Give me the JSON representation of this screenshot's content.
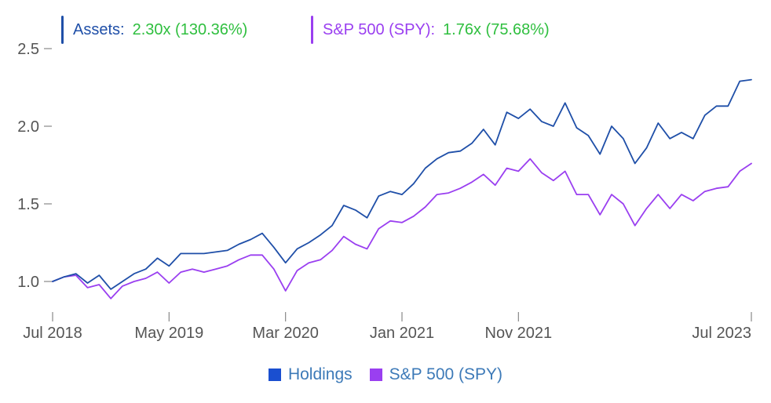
{
  "readout": {
    "assets": {
      "label": "Assets:",
      "value": "2.30x (130.36%)"
    },
    "spy": {
      "label": "S&P 500 (SPY):",
      "value": "1.76x (75.68%)"
    }
  },
  "legend": {
    "holdings": "Holdings",
    "spy": "S&P 500 (SPY)"
  },
  "colors": {
    "assets": "#1f4fa8",
    "spy": "#9a3ff0",
    "value_text": "#2fbf3f",
    "legend_text": "#3d7ab8",
    "holdings_swatch": "#1a4fd0",
    "spy_swatch": "#9a3ff0"
  },
  "chart_data": {
    "type": "line",
    "title": "",
    "xlabel": "",
    "ylabel": "",
    "ylim": [
      0.8,
      2.55
    ],
    "yticks": [
      1.0,
      1.5,
      2.0,
      2.5
    ],
    "ytick_labels": [
      "1.0",
      "1.5",
      "2.0",
      "2.5"
    ],
    "xtick_labels": [
      "Jul 2018",
      "May 2019",
      "Mar 2020",
      "Jan 2021",
      "Nov 2021",
      "Jul 2023"
    ],
    "xtick_index": [
      0,
      10,
      20,
      30,
      40,
      60
    ],
    "grid": false,
    "legend_position": "bottom",
    "x": [
      "2018-07",
      "2018-08",
      "2018-09",
      "2018-10",
      "2018-11",
      "2018-12",
      "2019-01",
      "2019-02",
      "2019-03",
      "2019-04",
      "2019-05",
      "2019-06",
      "2019-07",
      "2019-08",
      "2019-09",
      "2019-10",
      "2019-11",
      "2019-12",
      "2020-01",
      "2020-02",
      "2020-03",
      "2020-04",
      "2020-05",
      "2020-06",
      "2020-07",
      "2020-08",
      "2020-09",
      "2020-10",
      "2020-11",
      "2020-12",
      "2021-01",
      "2021-02",
      "2021-03",
      "2021-04",
      "2021-05",
      "2021-06",
      "2021-07",
      "2021-08",
      "2021-09",
      "2021-10",
      "2021-11",
      "2021-12",
      "2022-01",
      "2022-02",
      "2022-03",
      "2022-04",
      "2022-05",
      "2022-06",
      "2022-07",
      "2022-08",
      "2022-09",
      "2022-10",
      "2022-11",
      "2022-12",
      "2023-01",
      "2023-02",
      "2023-03",
      "2023-04",
      "2023-05",
      "2023-06",
      "2023-07"
    ],
    "series": [
      {
        "name": "Holdings",
        "color": "#1f4fa8",
        "values": [
          1.0,
          1.03,
          1.05,
          0.99,
          1.04,
          0.95,
          1.0,
          1.05,
          1.08,
          1.15,
          1.1,
          1.18,
          1.18,
          1.18,
          1.19,
          1.2,
          1.24,
          1.27,
          1.31,
          1.22,
          1.12,
          1.21,
          1.25,
          1.3,
          1.36,
          1.49,
          1.46,
          1.41,
          1.55,
          1.58,
          1.56,
          1.63,
          1.73,
          1.79,
          1.83,
          1.84,
          1.89,
          1.98,
          1.88,
          2.09,
          2.05,
          2.11,
          2.03,
          2.0,
          2.15,
          1.99,
          1.94,
          1.82,
          2.0,
          1.92,
          1.76,
          1.86,
          2.02,
          1.92,
          1.96,
          1.92,
          2.07,
          2.13,
          2.13,
          2.29,
          2.3
        ]
      },
      {
        "name": "S&P 500 (SPY)",
        "color": "#9a3ff0",
        "values": [
          1.0,
          1.03,
          1.04,
          0.96,
          0.98,
          0.89,
          0.97,
          1.0,
          1.02,
          1.06,
          0.99,
          1.06,
          1.08,
          1.06,
          1.08,
          1.1,
          1.14,
          1.17,
          1.17,
          1.08,
          0.94,
          1.07,
          1.12,
          1.14,
          1.2,
          1.29,
          1.24,
          1.21,
          1.34,
          1.39,
          1.38,
          1.42,
          1.48,
          1.56,
          1.57,
          1.6,
          1.64,
          1.69,
          1.62,
          1.73,
          1.71,
          1.79,
          1.7,
          1.65,
          1.71,
          1.56,
          1.56,
          1.43,
          1.56,
          1.5,
          1.36,
          1.47,
          1.56,
          1.47,
          1.56,
          1.52,
          1.58,
          1.6,
          1.61,
          1.71,
          1.76
        ]
      }
    ]
  }
}
